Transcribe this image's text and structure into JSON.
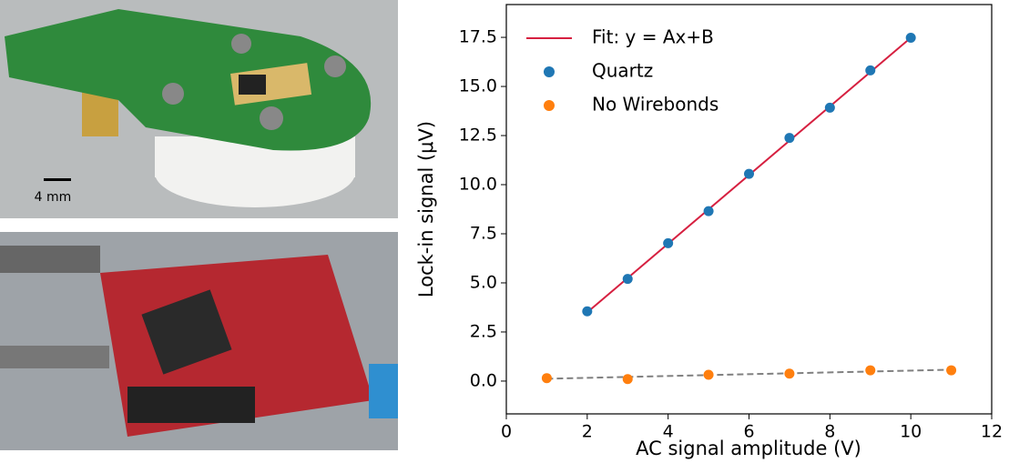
{
  "photo_caption": {
    "scale_bar": "4 mm"
  },
  "chart_data": {
    "type": "scatter",
    "x_label": "AC signal amplitude (V)",
    "y_label": "Lock-in signal (μV)",
    "xlim": [
      0,
      12
    ],
    "ylim": [
      -1.67,
      19.17
    ],
    "xticks": [
      0,
      2,
      4,
      6,
      8,
      10,
      12
    ],
    "yticks": [
      {
        "value": 0,
        "label": "0.0"
      },
      2.5,
      {
        "value": 5,
        "label": "5.0"
      },
      7.5,
      {
        "value": 10,
        "label": "10.0"
      },
      12.5,
      {
        "value": 15,
        "label": "15.0"
      },
      17.5
    ],
    "legend": "upper left",
    "series": [
      {
        "name": "Fit: y = Ax+B",
        "kind": "line",
        "color": "#d62040",
        "x": [
          2,
          10
        ],
        "values": [
          3.5,
          17.48
        ]
      },
      {
        "kind": "line",
        "dashed": true,
        "color": "#808080",
        "x": [
          1,
          11
        ],
        "values": [
          0.12,
          0.58
        ]
      },
      {
        "name": "Quartz",
        "kind": "scatter",
        "color": "#1f77b4",
        "x": [
          2,
          3,
          4,
          5,
          6,
          7,
          8,
          9,
          10
        ],
        "values": [
          3.55,
          5.2,
          7.02,
          8.65,
          10.55,
          12.38,
          13.92,
          15.82,
          17.48
        ]
      },
      {
        "name": "No Wirebonds",
        "kind": "scatter",
        "color": "#ff7f0e",
        "x": [
          1,
          3,
          5,
          7,
          9,
          11
        ],
        "values": [
          0.15,
          0.1,
          0.32,
          0.38,
          0.55,
          0.55
        ]
      }
    ]
  }
}
